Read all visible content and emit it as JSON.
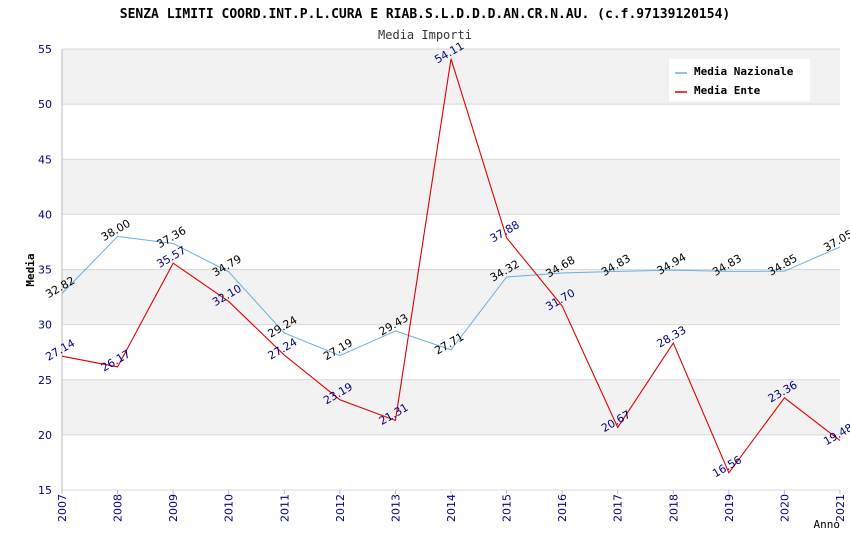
{
  "chart_data": {
    "type": "line",
    "title": "SENZA LIMITI COORD.INT.P.L.CURA E RIAB.S.L.D.D.D.AN.CR.N.AU. (c.f.97139120154)",
    "subtitle": "Media Importi",
    "xlabel": "Anno",
    "ylabel": "Media",
    "ylim": [
      15,
      55
    ],
    "yticks": [
      "15",
      "20",
      "25",
      "30",
      "35",
      "40",
      "45",
      "50",
      "55"
    ],
    "categories": [
      "2007",
      "2008",
      "2009",
      "2010",
      "2011",
      "2012",
      "2013",
      "2014",
      "2015",
      "2016",
      "2017",
      "2018",
      "2019",
      "2020",
      "2021"
    ],
    "series": [
      {
        "name": "Media Nazionale",
        "color": "#6aaee0",
        "label_color": "#000000",
        "values": [
          32.82,
          38.0,
          37.36,
          34.79,
          29.24,
          27.19,
          29.43,
          27.71,
          34.32,
          34.68,
          34.83,
          34.94,
          34.83,
          34.85,
          37.05
        ],
        "labels": [
          "32.82",
          "38.00",
          "37.36",
          "34.79",
          "29.24",
          "27.19",
          "29.43",
          "27.71",
          "34.32",
          "34.68",
          "34.83",
          "34.94",
          "34.83",
          "34.85",
          "37.05"
        ]
      },
      {
        "name": "Media Ente",
        "color": "#e00000",
        "label_color": "#000080",
        "values": [
          27.14,
          26.17,
          35.57,
          32.1,
          27.24,
          23.19,
          21.31,
          54.11,
          37.88,
          31.7,
          20.67,
          28.33,
          16.56,
          23.36,
          19.48
        ],
        "labels": [
          "27.14",
          "26.17",
          "35.57",
          "32.10",
          "27.24",
          "23.19",
          "21.31",
          "54.11",
          "37.88",
          "31.70",
          "20.67",
          "28.33",
          "16.56",
          "23.36",
          "19.48"
        ]
      }
    ],
    "grid": true,
    "legend": "top-right"
  },
  "colors": {
    "band": "#f2f2f2",
    "grid": "#d8d8d8",
    "axis_text": "#000080",
    "frame": "#bbbbbb"
  }
}
